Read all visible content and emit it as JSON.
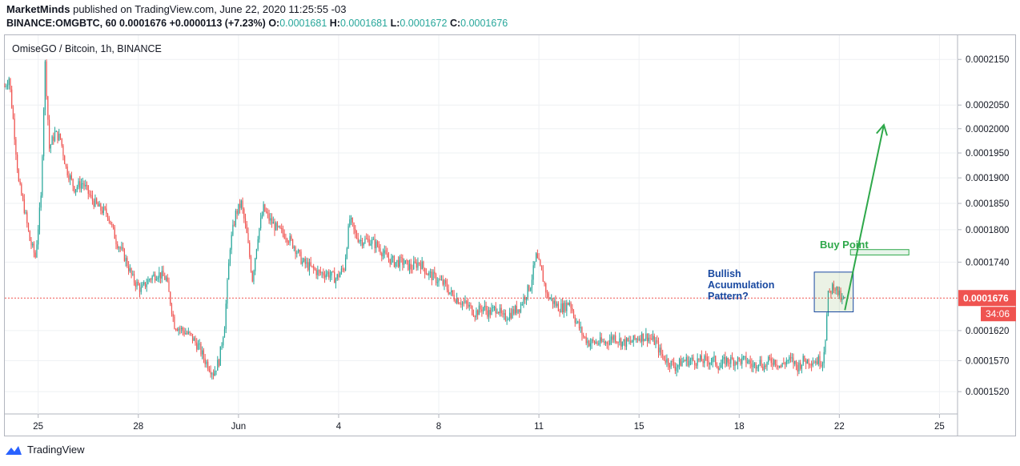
{
  "header": {
    "publisher": "MarketMinds",
    "published_text": "published on TradingView.com, June 22, 2020 11:25:55 -03",
    "symbol": "BINANCE:OMGBTC, 60",
    "last": "0.0001676",
    "change": "+0.0000113 (+7.23%)",
    "o_label": "O:",
    "o_value": "0.0001681",
    "h_label": "H:",
    "h_value": "0.0001681",
    "l_label": "L:",
    "l_value": "0.0001672",
    "c_label": "C:",
    "c_value": "0.0001676"
  },
  "footer": {
    "brand": "TradingView"
  },
  "colors": {
    "up": "#26a69a",
    "down": "#ef5350",
    "grid": "#eef0f3",
    "text": "#131722",
    "annotation_blue": "#1848a0",
    "annotation_green": "#2ea84a"
  },
  "chart_data": {
    "type": "candlestick",
    "title": "OmiseGO / Bitcoin, 1h, BINANCE",
    "y_scale": "log",
    "ylim": [
      0.0001485,
      0.0002205
    ],
    "y_ticks": [
      0.000152,
      0.000157,
      0.000162,
      0.000174,
      0.00018,
      0.000185,
      0.00019,
      0.000195,
      0.0002,
      0.000205,
      0.000215
    ],
    "y_tick_labels": [
      "0.0001520",
      "0.0001570",
      "0.0001620",
      "0.0001740",
      "0.0001800",
      "0.0001850",
      "0.0001900",
      "0.0001950",
      "0.0002000",
      "0.0002050",
      "0.0002150"
    ],
    "x_range": [
      0,
      685
    ],
    "x_ticks": [
      {
        "x": 24,
        "label": "25"
      },
      {
        "x": 96,
        "label": "28"
      },
      {
        "x": 168,
        "label": "Jun"
      },
      {
        "x": 240,
        "label": "4"
      },
      {
        "x": 312,
        "label": "8"
      },
      {
        "x": 384,
        "label": "11"
      },
      {
        "x": 456,
        "label": "15"
      },
      {
        "x": 528,
        "label": "18"
      },
      {
        "x": 600,
        "label": "22"
      },
      {
        "x": 672,
        "label": "25"
      }
    ],
    "last_price": 0.0001676,
    "last_price_label": "0.0001676",
    "countdown_label": "34:06",
    "price_path": [
      [
        0,
        0.000209
      ],
      [
        3,
        0.000211
      ],
      [
        6,
        0.000202
      ],
      [
        10,
        0.000189
      ],
      [
        14,
        0.000184
      ],
      [
        18,
        0.000178
      ],
      [
        22,
        0.000175
      ],
      [
        26,
        0.000186
      ],
      [
        29,
        0.000214
      ],
      [
        32,
        0.000196
      ],
      [
        36,
        0.000199
      ],
      [
        40,
        0.000198
      ],
      [
        44,
        0.000192
      ],
      [
        50,
        0.000188
      ],
      [
        56,
        0.000189
      ],
      [
        62,
        0.000186
      ],
      [
        68,
        0.000184
      ],
      [
        74,
        0.000183
      ],
      [
        80,
        0.000178
      ],
      [
        86,
        0.000175
      ],
      [
        92,
        0.000171
      ],
      [
        98,
        0.000169
      ],
      [
        104,
        0.000171
      ],
      [
        110,
        0.000172
      ],
      [
        116,
        0.000171
      ],
      [
        122,
        0.000163
      ],
      [
        128,
        0.000162
      ],
      [
        134,
        0.000161
      ],
      [
        140,
        0.000159
      ],
      [
        144,
        0.000157
      ],
      [
        150,
        0.000155
      ],
      [
        154,
        0.000157
      ],
      [
        158,
        0.000163
      ],
      [
        162,
        0.000177
      ],
      [
        166,
        0.000183
      ],
      [
        170,
        0.000185
      ],
      [
        174,
        0.000179
      ],
      [
        178,
        0.000171
      ],
      [
        182,
        0.000179
      ],
      [
        186,
        0.000184
      ],
      [
        190,
        0.000182
      ],
      [
        196,
        0.00018
      ],
      [
        202,
        0.000179
      ],
      [
        208,
        0.000177
      ],
      [
        214,
        0.000174
      ],
      [
        220,
        0.000173
      ],
      [
        226,
        0.000172
      ],
      [
        232,
        0.000172
      ],
      [
        238,
        0.000171
      ],
      [
        244,
        0.000173
      ],
      [
        248,
        0.000182
      ],
      [
        252,
        0.000179
      ],
      [
        256,
        0.000178
      ],
      [
        262,
        0.000178
      ],
      [
        268,
        0.000177
      ],
      [
        274,
        0.000175
      ],
      [
        280,
        0.000174
      ],
      [
        286,
        0.000174
      ],
      [
        292,
        0.000173
      ],
      [
        298,
        0.000174
      ],
      [
        304,
        0.000172
      ],
      [
        310,
        0.000171
      ],
      [
        316,
        0.00017
      ],
      [
        322,
        0.000168
      ],
      [
        328,
        0.000167
      ],
      [
        334,
        0.000166
      ],
      [
        338,
        0.000165
      ],
      [
        344,
        0.000166
      ],
      [
        348,
        0.000165
      ],
      [
        354,
        0.000166
      ],
      [
        358,
        0.000164
      ],
      [
        364,
        0.000165
      ],
      [
        370,
        0.000166
      ],
      [
        374,
        0.000168
      ],
      [
        378,
        0.00017
      ],
      [
        382,
        0.000175
      ],
      [
        386,
        0.000172
      ],
      [
        390,
        0.000168
      ],
      [
        394,
        0.000167
      ],
      [
        398,
        0.000166
      ],
      [
        402,
        0.000166
      ],
      [
        406,
        0.000167
      ],
      [
        410,
        0.000164
      ],
      [
        416,
        0.000161
      ],
      [
        420,
        0.00016
      ],
      [
        426,
        0.00016
      ],
      [
        432,
        0.00016
      ],
      [
        438,
        0.000161
      ],
      [
        444,
        0.00016
      ],
      [
        450,
        0.00016
      ],
      [
        456,
        0.000161
      ],
      [
        462,
        0.000161
      ],
      [
        468,
        0.00016
      ],
      [
        472,
        0.000158
      ],
      [
        476,
        0.000157
      ],
      [
        482,
        0.000156
      ],
      [
        488,
        0.000157
      ],
      [
        494,
        0.000157
      ],
      [
        500,
        0.000157
      ],
      [
        506,
        0.000157
      ],
      [
        510,
        0.000157
      ],
      [
        514,
        0.000156
      ],
      [
        518,
        0.000157
      ],
      [
        522,
        0.000157
      ],
      [
        526,
        0.000157
      ],
      [
        530,
        0.000157
      ],
      [
        534,
        0.000157
      ],
      [
        538,
        0.000156
      ],
      [
        542,
        0.000157
      ],
      [
        546,
        0.000156
      ],
      [
        550,
        0.000157
      ],
      [
        554,
        0.000157
      ],
      [
        558,
        0.000156
      ],
      [
        562,
        0.000157
      ],
      [
        566,
        0.000157
      ],
      [
        570,
        0.000156
      ],
      [
        574,
        0.000157
      ],
      [
        578,
        0.000157
      ],
      [
        582,
        0.000157
      ],
      [
        586,
        0.000157
      ],
      [
        588,
        0.000157
      ],
      [
        590,
        0.000161
      ],
      [
        592,
        0.000168
      ],
      [
        594,
        0.000169
      ],
      [
        596,
        0.00017
      ],
      [
        598,
        0.000169
      ],
      [
        600,
        0.000168
      ],
      [
        602,
        0.000167
      ],
      [
        604,
        0.0001676
      ]
    ],
    "annotations": [
      {
        "kind": "text",
        "lines": [
          "Bullish",
          "Acuumulation",
          "Pattern?"
        ],
        "color": "#1848a0",
        "near_price": 0.000171
      },
      {
        "kind": "rectangle",
        "label": "accumulation-zone",
        "x_from": 582,
        "x_to": 610,
        "y_from": 0.0001652,
        "y_to": 0.0001722
      },
      {
        "kind": "text",
        "lines": [
          "Buy Point"
        ],
        "color": "#2ea84a",
        "near_price": 0.000178
      },
      {
        "kind": "rectangle",
        "label": "buy-point-zone",
        "x_from": 608,
        "x_to": 650,
        "y_from": 0.0001756,
        "y_to": 0.000176
      },
      {
        "kind": "arrow",
        "label": "projection",
        "from": [
          604,
          0.0001655
        ],
        "to": [
          632,
          0.0002008
        ]
      }
    ]
  }
}
